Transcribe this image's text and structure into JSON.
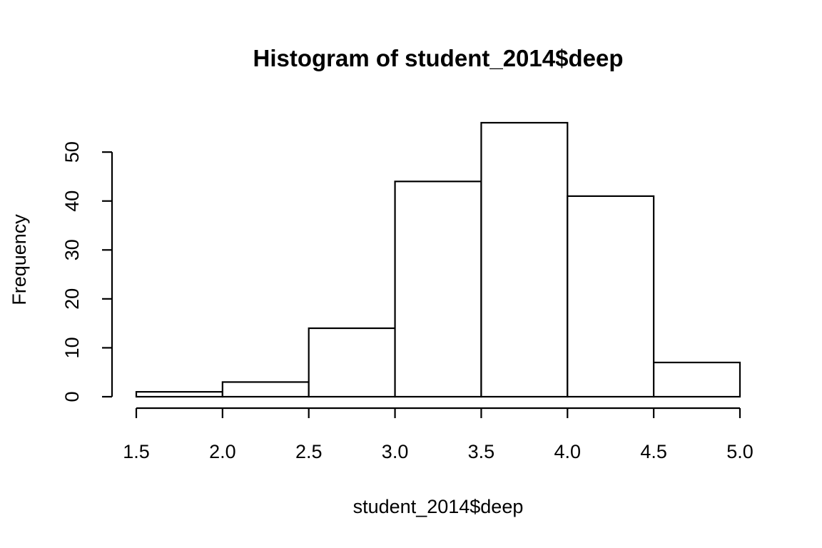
{
  "chart_data": {
    "type": "bar",
    "title": "Histogram of student_2014$deep",
    "xlabel": "student_2014$deep",
    "ylabel": "Frequency",
    "bins": [
      {
        "x0": 1.5,
        "x1": 2.0,
        "count": 1
      },
      {
        "x0": 2.0,
        "x1": 2.5,
        "count": 3
      },
      {
        "x0": 2.5,
        "x1": 3.0,
        "count": 14
      },
      {
        "x0": 3.0,
        "x1": 3.5,
        "count": 44
      },
      {
        "x0": 3.5,
        "x1": 4.0,
        "count": 56
      },
      {
        "x0": 4.0,
        "x1": 4.5,
        "count": 41
      },
      {
        "x0": 4.5,
        "x1": 5.0,
        "count": 7
      }
    ],
    "xlim": [
      1.5,
      5.0
    ],
    "ylim": [
      0,
      56
    ],
    "x_ticks": [
      "1.5",
      "2.0",
      "2.5",
      "3.0",
      "3.5",
      "4.0",
      "4.5",
      "5.0"
    ],
    "y_ticks": [
      "0",
      "10",
      "20",
      "30",
      "40",
      "50"
    ],
    "grid": false,
    "legend": "none",
    "colors": {
      "bar_fill": "#ffffff",
      "bar_stroke": "#000000"
    }
  }
}
